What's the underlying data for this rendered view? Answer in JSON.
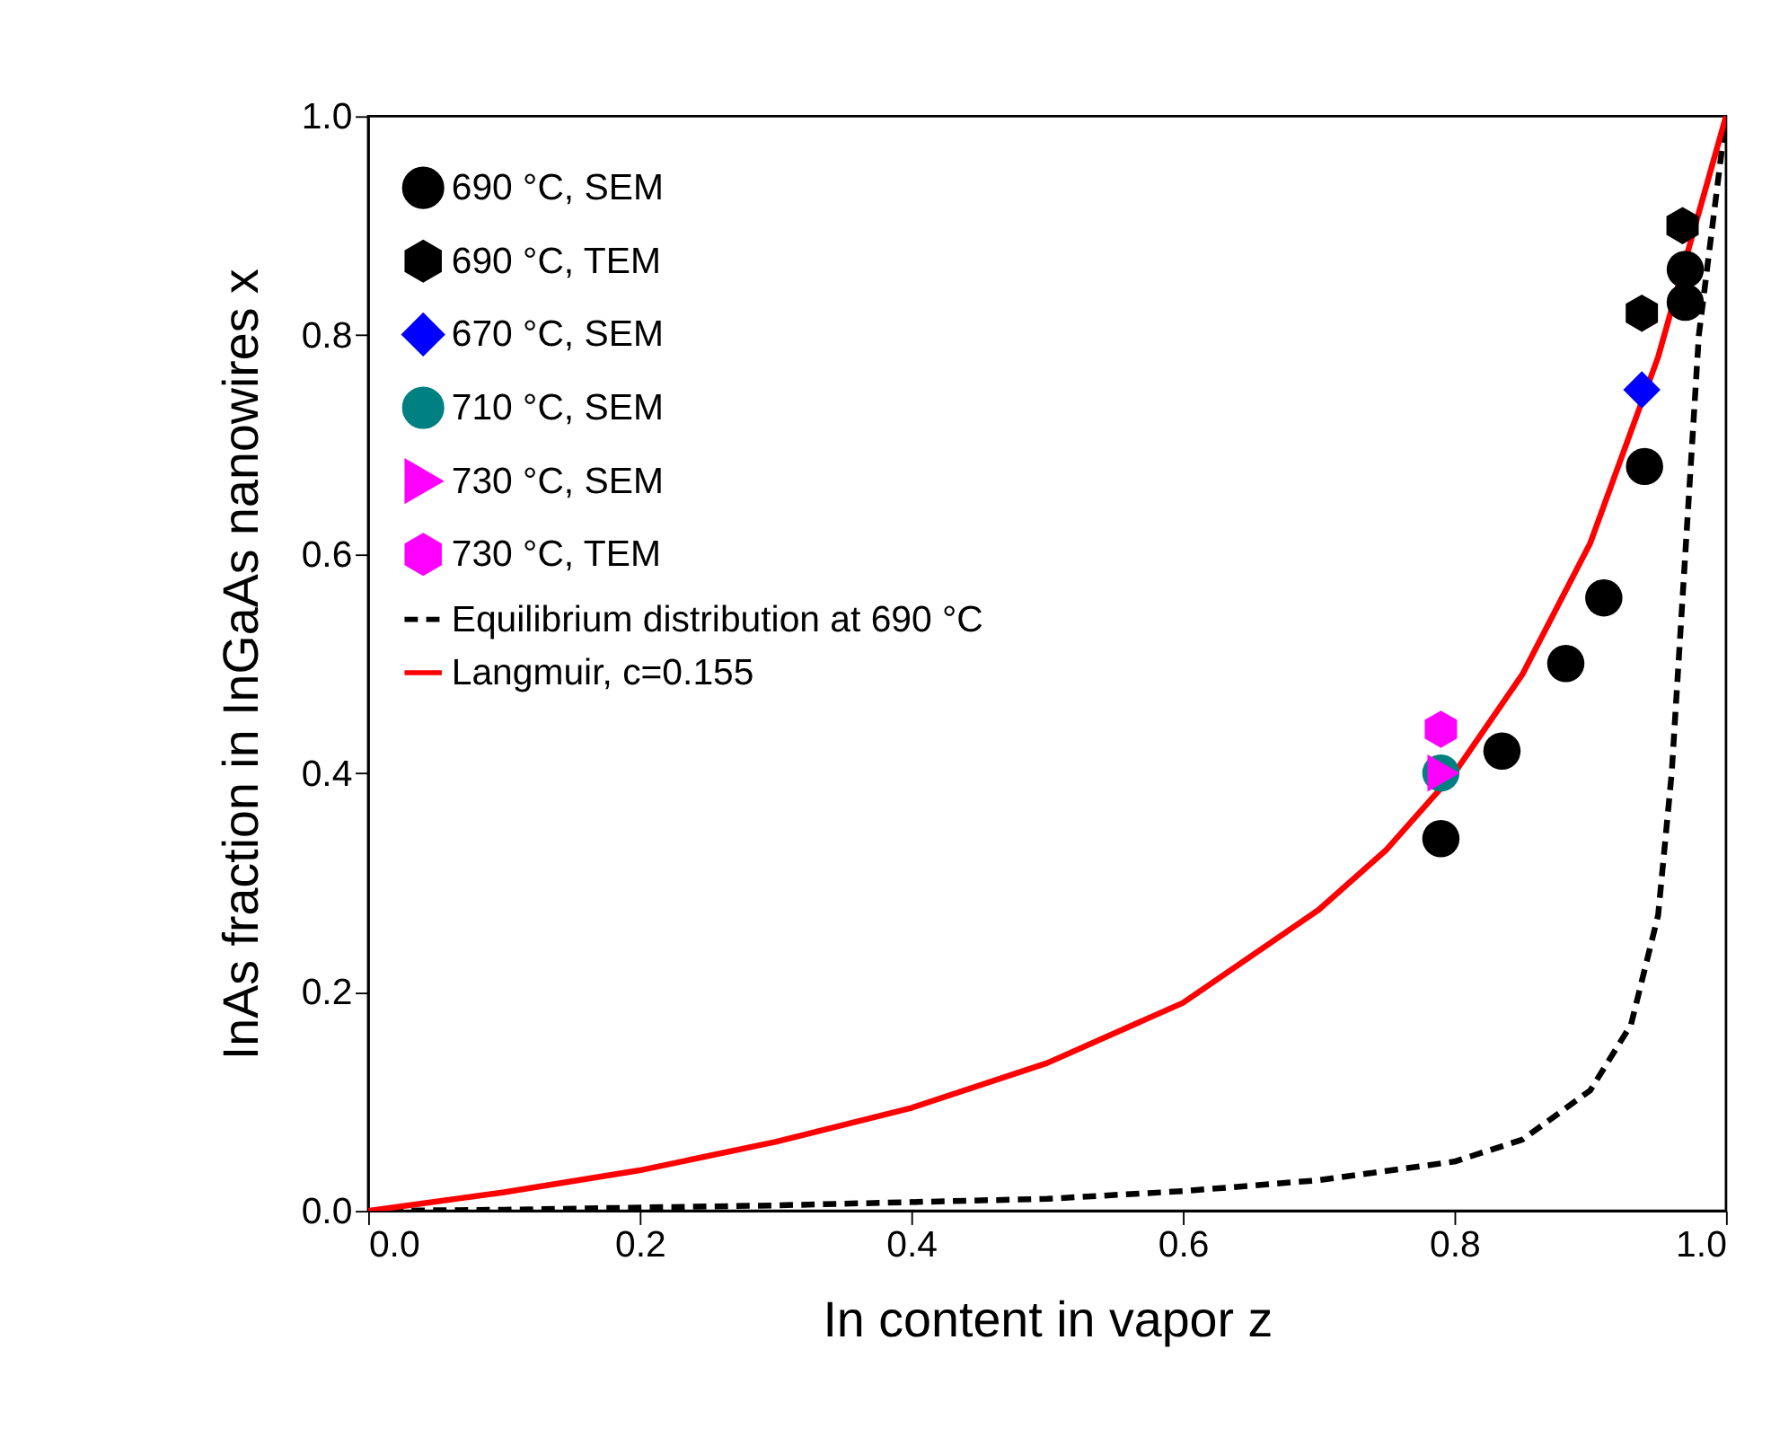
{
  "chart_data": {
    "type": "scatter",
    "xlabel": "In content in vapor z",
    "ylabel": "InAs fraction in InGaAs nanowires x",
    "xlim": [
      0,
      1
    ],
    "ylim": [
      0,
      1
    ],
    "xticks": [
      {
        "value": 0,
        "label": "0.0"
      },
      0.2,
      0.4,
      0.6,
      0.8,
      {
        "value": 1,
        "label": "1.0"
      }
    ],
    "yticks": [
      {
        "value": 0,
        "label": "0.0"
      },
      0.2,
      0.4,
      0.6,
      0.8,
      {
        "value": 1,
        "label": "1.0"
      }
    ],
    "grid": false,
    "legend": "top left",
    "series": [
      {
        "name": "690 °C, SEM",
        "marker": "circle",
        "color": "#000000",
        "x": [
          0.79,
          0.835,
          0.882,
          0.91,
          0.94,
          0.97,
          0.97
        ],
        "values": [
          0.34,
          0.42,
          0.5,
          0.56,
          0.68,
          0.83,
          0.86
        ]
      },
      {
        "name": "690 °C, TEM",
        "color": "#000000",
        "x": [
          0.938,
          0.968
        ],
        "values": [
          0.82,
          0.9
        ]
      },
      {
        "name": "670 °C, SEM",
        "marker": "diamond",
        "color": "#0000ff",
        "x": [
          0.938
        ],
        "values": [
          0.75
        ]
      },
      {
        "name": "710 °C, SEM",
        "marker": "circle",
        "color": "#008080",
        "x": [
          0.79
        ],
        "values": [
          0.4
        ]
      },
      {
        "name": "730 °C, SEM",
        "marker": "triangle-right",
        "color": "#ff00ff",
        "x": [
          0.792
        ],
        "values": [
          0.4
        ]
      },
      {
        "name": "730 °C, TEM",
        "color": "#ff00ff",
        "x": [
          0.79
        ],
        "values": [
          0.44
        ]
      },
      {
        "name": "Equilibrium distribution at 690 °C",
        "type": "line",
        "line_style": "dashed",
        "color": "#000000",
        "x": [
          0,
          0.1,
          0.3,
          0.5,
          0.6,
          0.7,
          0.8,
          0.85,
          0.9,
          0.93,
          0.95,
          0.96,
          0.97,
          0.98,
          1.0
        ],
        "values": [
          0,
          0.001,
          0.005,
          0.011,
          0.018,
          0.028,
          0.045,
          0.065,
          0.11,
          0.17,
          0.27,
          0.4,
          0.6,
          0.8,
          1.0
        ]
      },
      {
        "name": "Langmuir, c=0.155",
        "type": "line",
        "line_style": "solid",
        "color": "#ff0000",
        "x": [
          0,
          0.1,
          0.2,
          0.3,
          0.4,
          0.5,
          0.6,
          0.7,
          0.75,
          0.8,
          0.85,
          0.9,
          0.95,
          1.0
        ],
        "values": [
          0,
          0.017,
          0.037,
          0.063,
          0.094,
          0.135,
          0.19,
          0.275,
          0.33,
          0.4,
          0.49,
          0.61,
          0.78,
          1.0
        ]
      }
    ]
  }
}
